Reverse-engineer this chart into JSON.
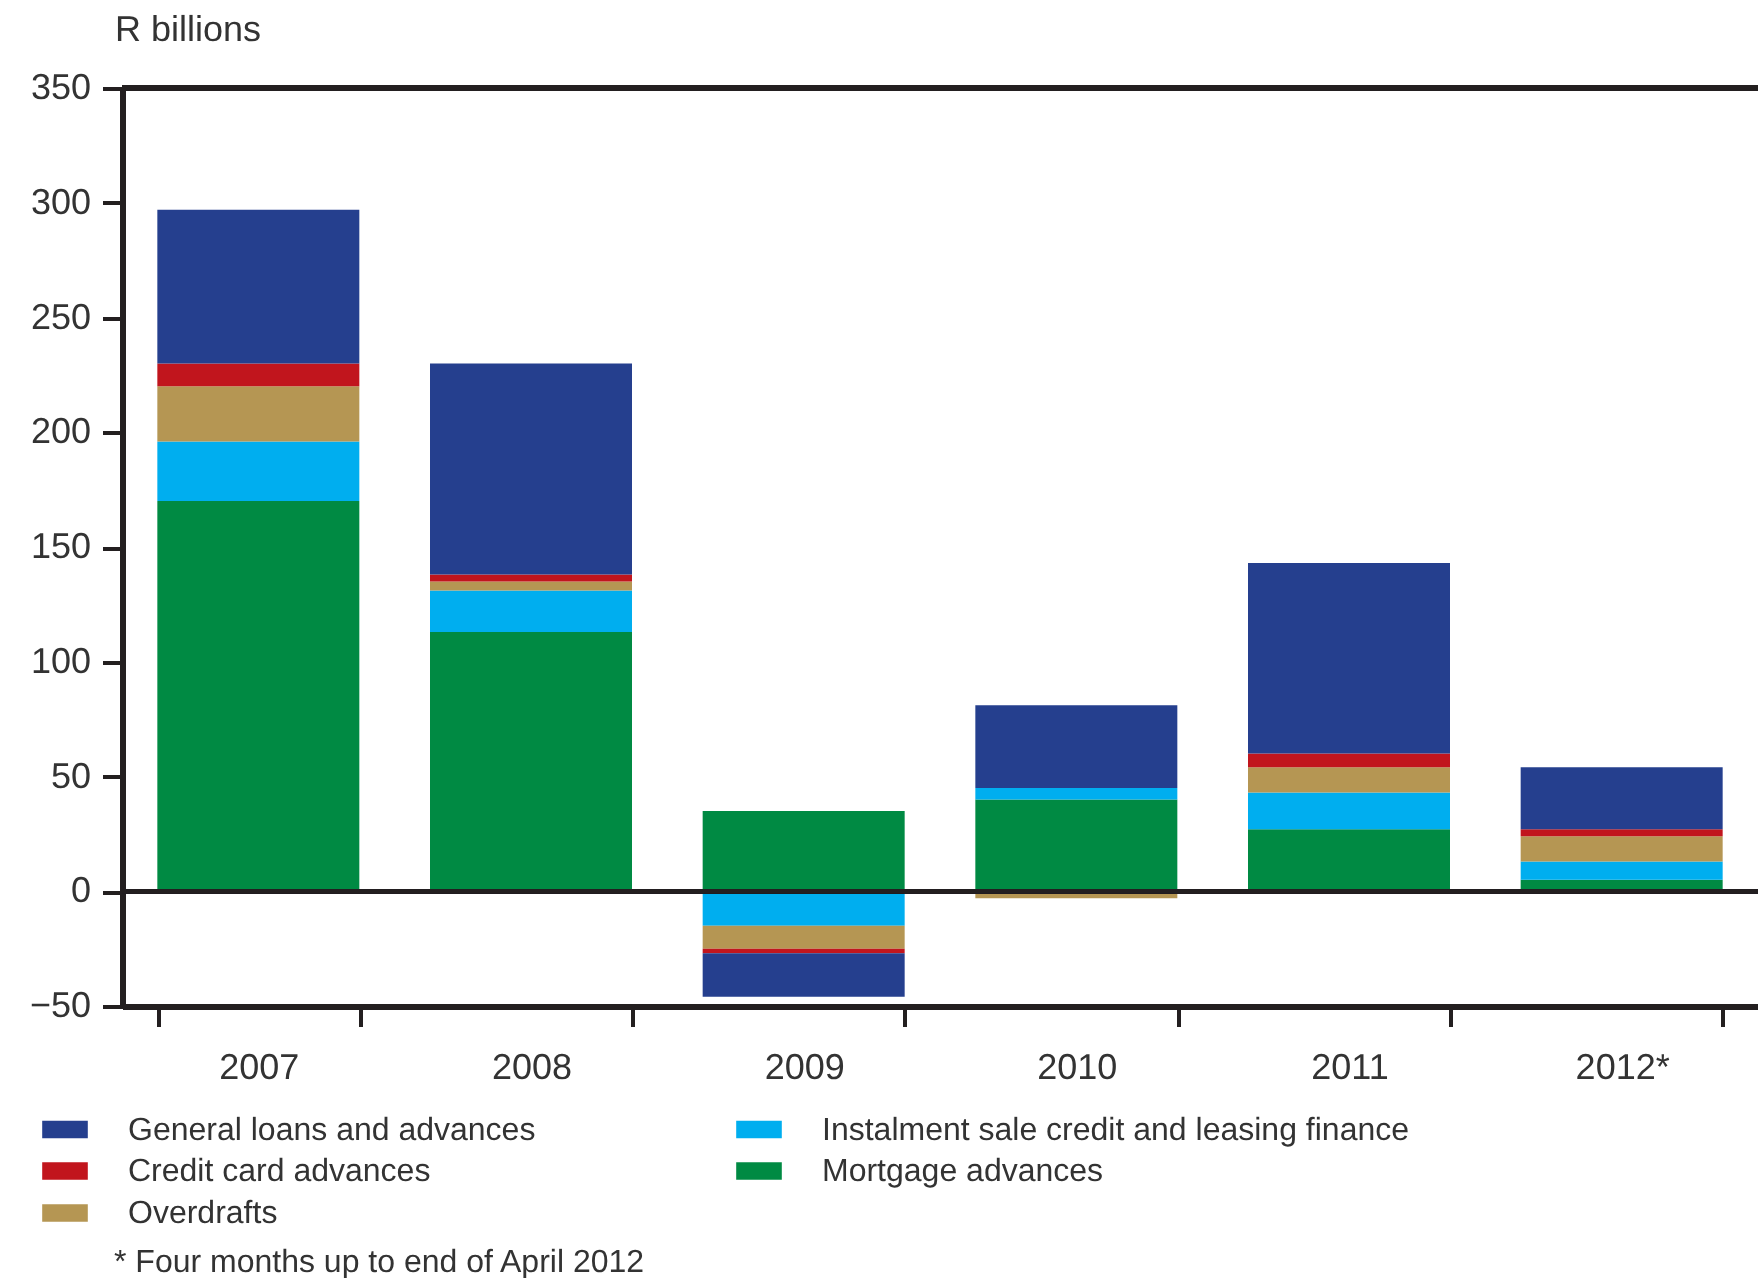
{
  "chart_data": {
    "type": "bar",
    "stacked": true,
    "ylabel": "R billions",
    "categories": [
      "2007",
      "2008",
      "2009",
      "2010",
      "2011",
      "2012*"
    ],
    "series": [
      {
        "name": "Mortgage advances",
        "color": "#008a43",
        "values": [
          170,
          113,
          35,
          40,
          27,
          5
        ]
      },
      {
        "name": "Instalment sale credit and leasing finance",
        "color": "#00aeef",
        "values": [
          26,
          18,
          -15,
          5,
          16,
          8
        ]
      },
      {
        "name": "Overdrafts",
        "color": "#b59653",
        "values": [
          24,
          4,
          -10,
          -3,
          11,
          11
        ]
      },
      {
        "name": "Credit card advances",
        "color": "#c1151d",
        "values": [
          10,
          3,
          -2,
          0,
          6,
          3
        ]
      },
      {
        "name": "General loans and advances",
        "color": "#253f8e",
        "values": [
          67,
          92,
          -19,
          36,
          83,
          27
        ]
      }
    ],
    "ylim": [
      -50,
      350
    ],
    "yticks": [
      -50,
      0,
      50,
      100,
      150,
      200,
      250,
      300,
      350
    ],
    "legend": "bottom",
    "annotations": [
      "* Four months up to end of April 2012"
    ]
  }
}
